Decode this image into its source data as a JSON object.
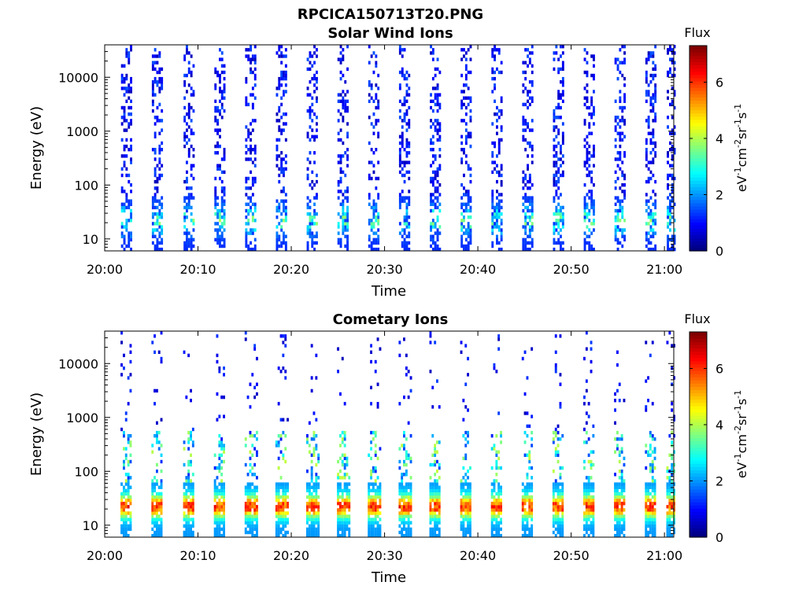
{
  "figure": {
    "file_title": "RPCICA150713T20.PNG"
  },
  "colorbar": {
    "label_base": "eV",
    "label_parts": [
      "eV",
      "-1",
      "cm",
      "-2",
      "sr",
      "-1",
      "s",
      "-1"
    ],
    "title": "Flux",
    "range": [
      0,
      7.3
    ],
    "ticks": [
      0,
      2,
      4,
      6
    ],
    "tick_labels": [
      "0",
      "2",
      "4",
      "6"
    ],
    "colormap": "jet"
  },
  "chart_data": [
    {
      "type": "heatmap",
      "title": "Solar Wind Ions",
      "xlabel": "Time",
      "ylabel": "Energy (eV)",
      "x_range": [
        "20:00",
        "21:01"
      ],
      "x_ticks": [
        "20:00",
        "20:10",
        "20:20",
        "20:30",
        "20:40",
        "20:50",
        "21:00"
      ],
      "y_scale": "log",
      "y_range": [
        6,
        40000
      ],
      "y_ticks": [
        10,
        100,
        1000,
        10000
      ],
      "y_tick_labels": [
        "10",
        "100",
        "1000",
        "10000"
      ],
      "sweep_centers_min": [
        2.3,
        5.6,
        9.0,
        12.3,
        15.6,
        18.9,
        22.2,
        25.5,
        28.8,
        32.1,
        35.4,
        38.7,
        42.0,
        45.3,
        48.6,
        51.9,
        55.2,
        58.5,
        60.8
      ],
      "high_energy_flux": [
        0.5,
        1.6
      ],
      "low_energy_peak_flux": [
        2.0,
        4.3
      ],
      "low_energy_peak_energy_eV": [
        15,
        40
      ]
    },
    {
      "type": "heatmap",
      "title": "Cometary Ions",
      "xlabel": "Time",
      "ylabel": "Energy (eV)",
      "x_range": [
        "20:00",
        "21:01"
      ],
      "x_ticks": [
        "20:00",
        "20:10",
        "20:20",
        "20:30",
        "20:40",
        "20:50",
        "21:00"
      ],
      "y_scale": "log",
      "y_range": [
        6,
        40000
      ],
      "y_ticks": [
        10,
        100,
        1000,
        10000
      ],
      "y_tick_labels": [
        "10",
        "100",
        "1000",
        "10000"
      ],
      "sweep_centers_min": [
        2.3,
        5.6,
        9.0,
        12.3,
        15.6,
        18.9,
        22.2,
        25.5,
        28.8,
        32.1,
        35.4,
        38.7,
        42.0,
        45.3,
        48.6,
        51.9,
        55.2,
        58.5,
        60.8
      ],
      "peak_energy_eV": [
        15,
        40
      ],
      "peak_flux": [
        4.5,
        6.5
      ],
      "plume_energy_eV": [
        100,
        500
      ],
      "sparse_high_energy_flux": [
        0.5,
        1.5
      ]
    }
  ]
}
